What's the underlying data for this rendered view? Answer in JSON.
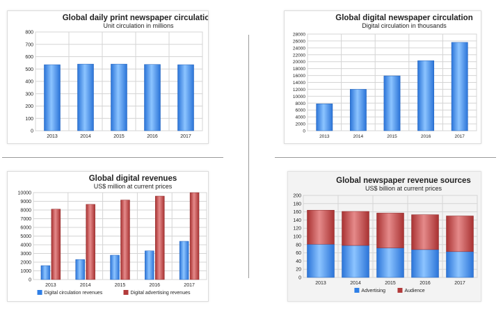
{
  "colors": {
    "blue": "#2f7fe6",
    "blue_light": "#8cc4ff",
    "red": "#b23b3b",
    "red_light": "#e58a8a",
    "grid": "#d4d4d4",
    "text": "#222222"
  },
  "chart_data": [
    {
      "type": "bar",
      "title": "Global daily print newspaper circulation",
      "subtitle": "Unit circulation in millions",
      "categories": [
        "2013",
        "2014",
        "2015",
        "2016",
        "2017"
      ],
      "series": [
        {
          "values": [
            535,
            540,
            540,
            537,
            535
          ]
        }
      ],
      "ylim": [
        0,
        800
      ],
      "yticks": [
        0,
        100,
        200,
        300,
        400,
        500,
        600,
        700,
        800
      ],
      "grid": true
    },
    {
      "type": "bar",
      "title": "Global digital newspaper circulation",
      "subtitle": "Digital circulation in thousands",
      "categories": [
        "2013",
        "2014",
        "2015",
        "2016",
        "2017"
      ],
      "series": [
        {
          "values": [
            7800,
            12000,
            15900,
            20300,
            25600
          ]
        }
      ],
      "ylim": [
        0,
        28000
      ],
      "yticks": [
        0,
        2000,
        4000,
        6000,
        8000,
        10000,
        12000,
        14000,
        16000,
        18000,
        20000,
        22000,
        24000,
        26000,
        28000
      ],
      "grid": true
    },
    {
      "type": "bar",
      "title": "Global digital revenues",
      "subtitle": "US$ million at current prices",
      "categories": [
        "2013",
        "2014",
        "2015",
        "2016",
        "2017"
      ],
      "series": [
        {
          "name": "Digital circulation revenues",
          "values": [
            1600,
            2300,
            2800,
            3300,
            4400
          ]
        },
        {
          "name": "Digital advertising revenues",
          "values": [
            8100,
            8650,
            9150,
            9600,
            10000
          ]
        }
      ],
      "ylim": [
        0,
        10000
      ],
      "yticks": [
        0,
        1000,
        2000,
        3000,
        4000,
        5000,
        6000,
        7000,
        8000,
        9000,
        10000
      ],
      "legend": "bottom",
      "grid": true
    },
    {
      "type": "stacked-bar",
      "title": "Global newspaper revenue sources",
      "subtitle": "US$ billion at current prices",
      "categories": [
        "2013",
        "2014",
        "2015",
        "2016",
        "2017"
      ],
      "series": [
        {
          "name": "Advertising",
          "values": [
            81,
            78,
            72,
            68,
            63
          ]
        },
        {
          "name": "Audience",
          "values": [
            83,
            83,
            85,
            85,
            87
          ]
        }
      ],
      "ylim": [
        0,
        200
      ],
      "yticks": [
        0,
        20,
        40,
        60,
        80,
        100,
        120,
        140,
        160,
        180,
        200
      ],
      "legend": "bottom",
      "grid": true
    }
  ]
}
